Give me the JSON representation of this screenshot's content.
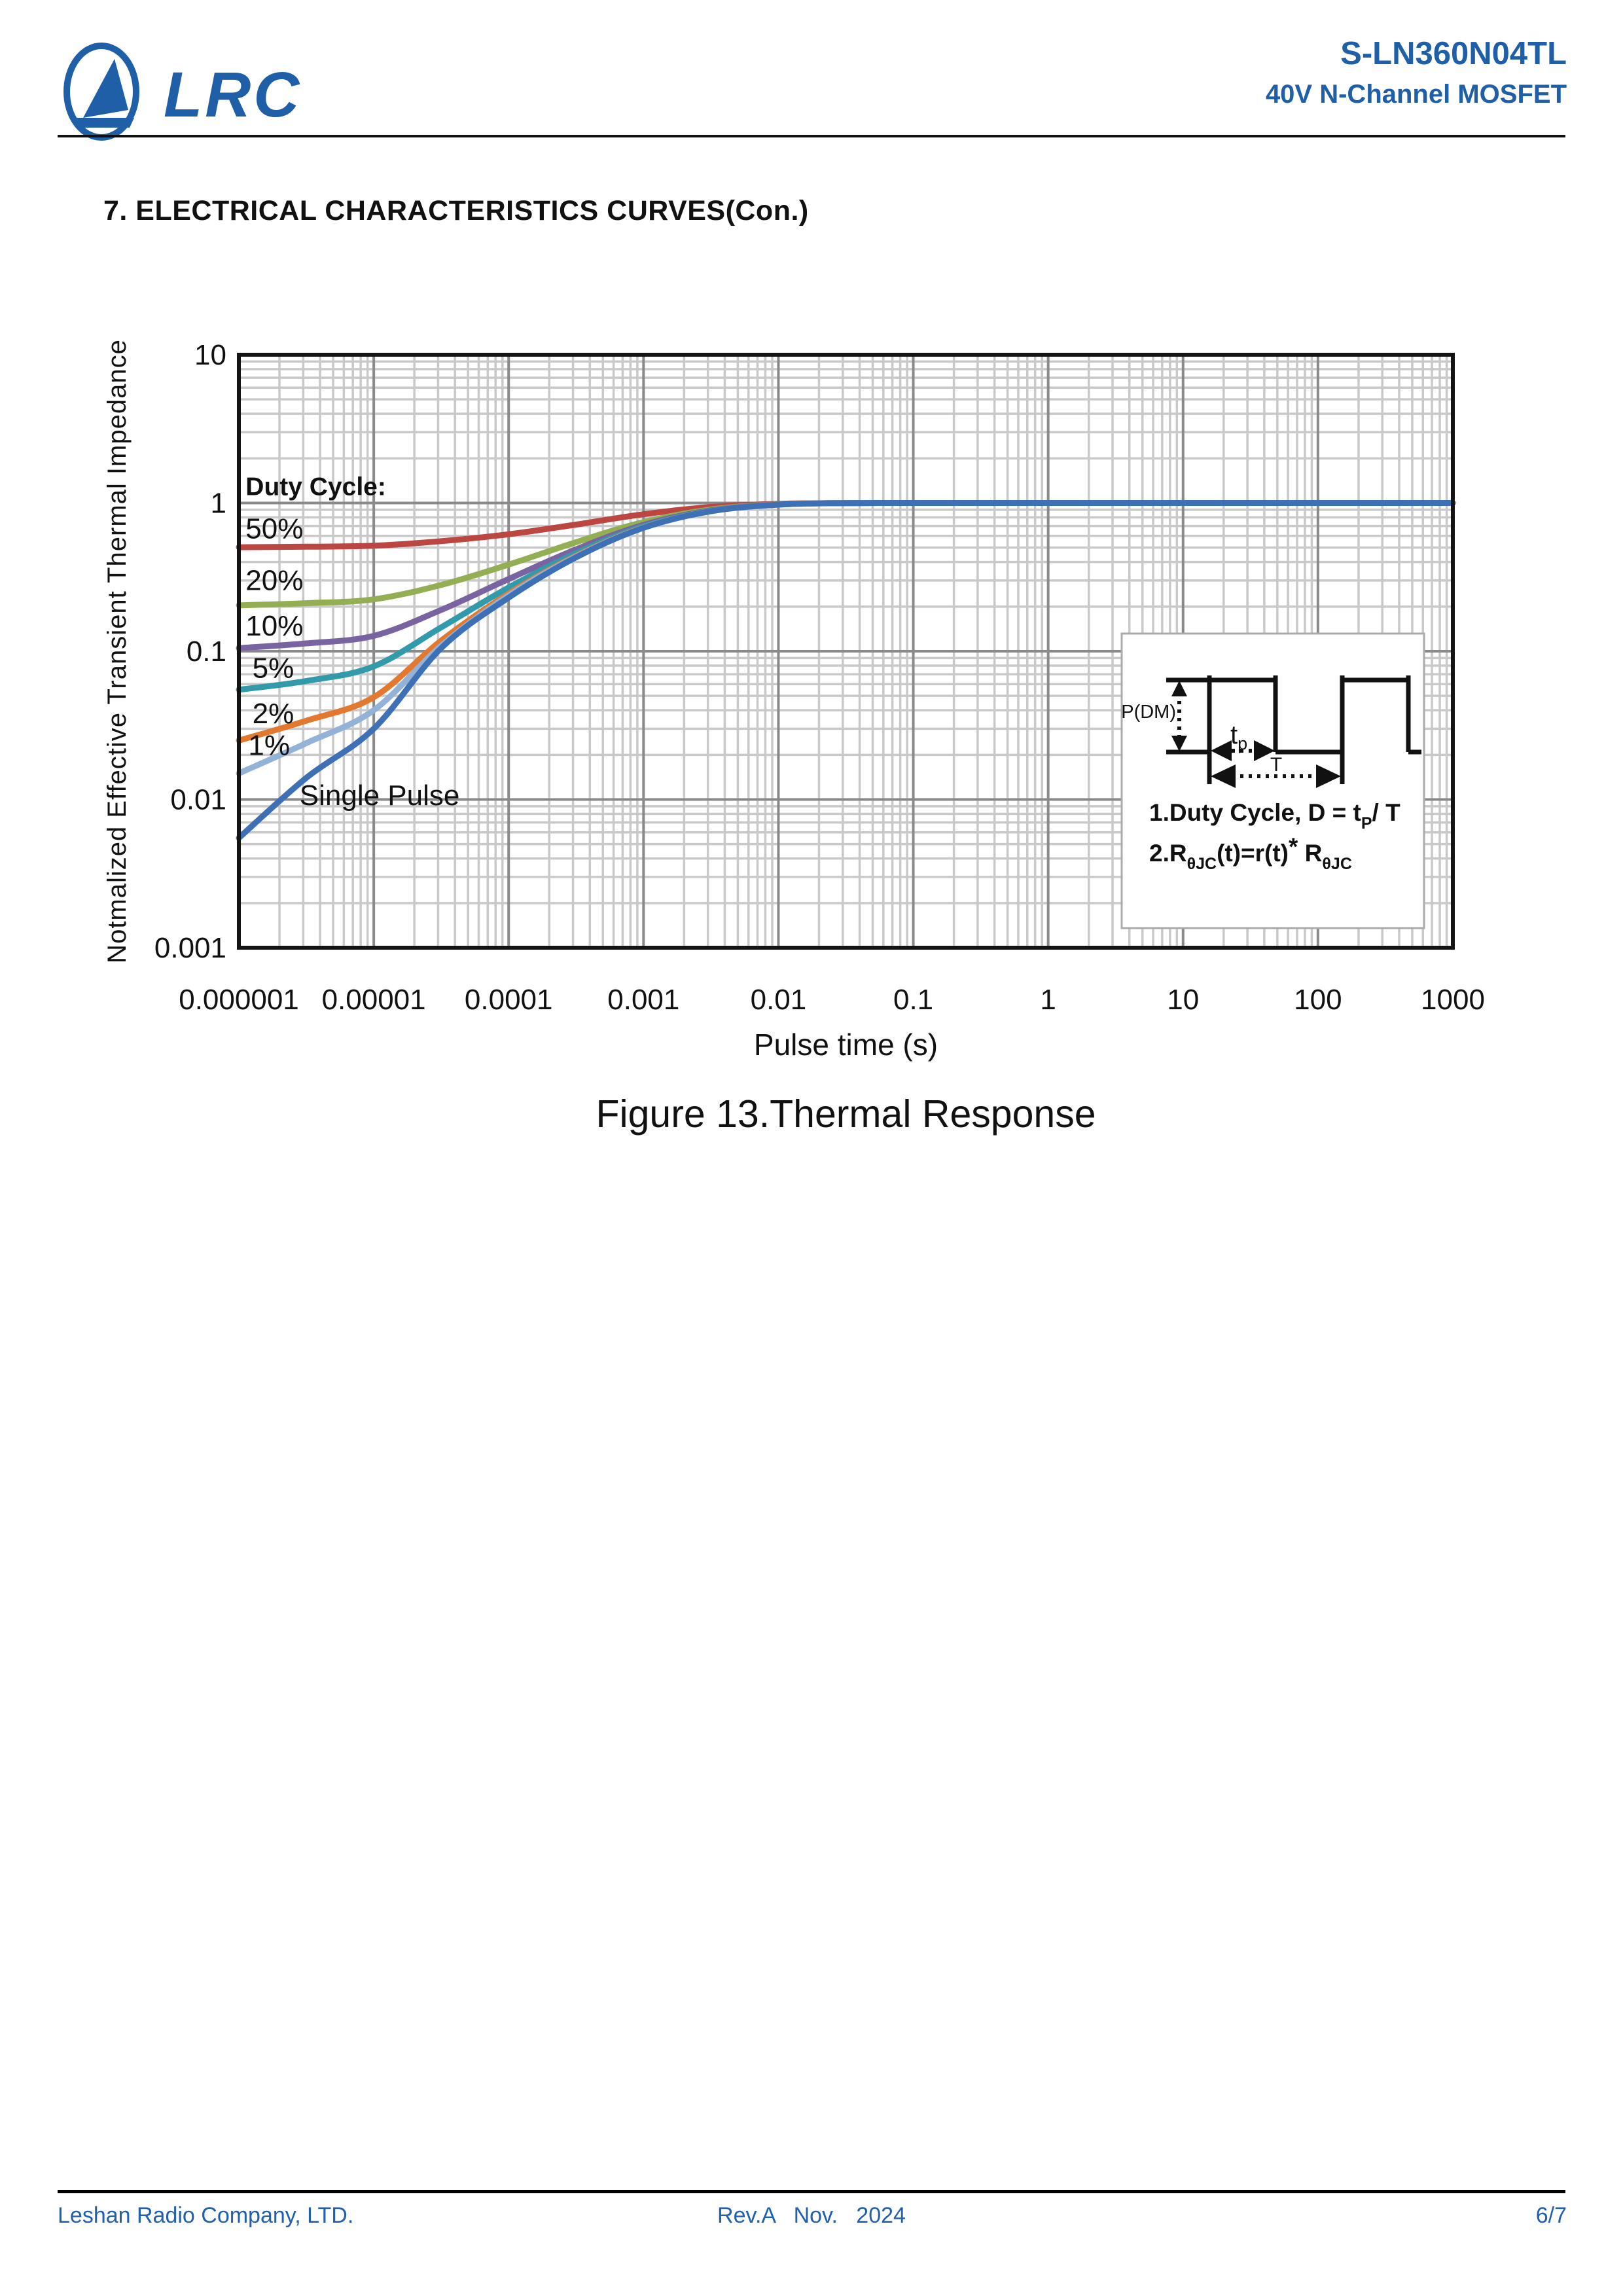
{
  "header": {
    "brand": "LRC",
    "part_number": "S-LN360N04TL",
    "subtitle": "40V N-Channel MOSFET"
  },
  "section_title": "7. ELECTRICAL CHARACTERISTICS CURVES(Con.)",
  "figure_caption": "Figure 13.Thermal Response",
  "footer": {
    "company": "Leshan Radio Company, LTD.",
    "revision": "Rev.A   Nov.   2024",
    "page": "6/7"
  },
  "chart_data": {
    "type": "line",
    "title": "Figure 13.Thermal Response",
    "xlabel": "Pulse time (s)",
    "ylabel": "Notmalized Effective Transient Thermal Impedance",
    "x_scale": "log",
    "y_scale": "log",
    "xlim": [
      1e-06,
      1000
    ],
    "ylim": [
      0.001,
      10
    ],
    "grid": "log major and minor gridlines on",
    "legend_title": "Duty Cycle:",
    "legend_title_pos": {
      "logt": -5.95,
      "r": 1.3
    },
    "x_ticks": [
      "0.000001",
      "0.00001",
      "0.0001",
      "0.001",
      "0.01",
      "0.1",
      "1",
      "10",
      "100",
      "1000"
    ],
    "y_ticks": [
      "10",
      "1",
      "0.1",
      "0.01",
      "0.001"
    ],
    "x_log10": [
      -6,
      -5.5,
      -5,
      -4.5,
      -4,
      -3.5,
      -3,
      -2.5,
      -2,
      -1.5,
      -1,
      0,
      1,
      2,
      3
    ],
    "series": [
      {
        "name": "50%",
        "duty": 0.5,
        "color": "#bb4642",
        "values": [
          0.503,
          0.507,
          0.515,
          0.553,
          0.615,
          0.715,
          0.84,
          0.94,
          0.988,
          0.999,
          1,
          1,
          1,
          1,
          1
        ]
      },
      {
        "name": "20%",
        "duty": 0.2,
        "color": "#94ae53",
        "values": [
          0.204,
          0.211,
          0.224,
          0.28,
          0.384,
          0.544,
          0.744,
          0.904,
          0.98,
          0.998,
          1,
          1,
          1,
          1,
          1
        ]
      },
      {
        "name": "10%",
        "duty": 0.1,
        "color": "#7a63a1",
        "values": [
          0.105,
          0.113,
          0.127,
          0.19,
          0.307,
          0.487,
          0.712,
          0.892,
          0.978,
          0.998,
          1,
          1,
          1,
          1,
          1
        ]
      },
      {
        "name": "5%",
        "duty": 0.05,
        "color": "#319bac",
        "values": [
          0.055,
          0.063,
          0.079,
          0.145,
          0.269,
          0.459,
          0.696,
          0.886,
          0.976,
          0.998,
          1,
          1,
          1,
          1,
          1
        ]
      },
      {
        "name": "2%",
        "duty": 0.02,
        "color": "#e3792e",
        "values": [
          0.025,
          0.034,
          0.049,
          0.118,
          0.245,
          0.441,
          0.686,
          0.882,
          0.976,
          0.998,
          1,
          1,
          1,
          1,
          1
        ]
      },
      {
        "name": "1%",
        "duty": 0.01,
        "color": "#93b2d8",
        "values": [
          0.015,
          0.024,
          0.04,
          0.109,
          0.238,
          0.436,
          0.683,
          0.881,
          0.975,
          0.998,
          1,
          1,
          1,
          1,
          1
        ]
      },
      {
        "name": "Single Pulse",
        "duty": 0,
        "color": "#3e70b5",
        "values": [
          0.0055,
          0.014,
          0.03,
          0.105,
          0.23,
          0.43,
          0.68,
          0.88,
          0.975,
          0.998,
          1,
          1,
          1,
          1,
          1
        ]
      }
    ],
    "curve_labels": [
      {
        "text": "50%",
        "logt": -5.95,
        "r": 0.68
      },
      {
        "text": "20%",
        "logt": -5.95,
        "r": 0.305
      },
      {
        "text": "10%",
        "logt": -5.95,
        "r": 0.15
      },
      {
        "text": "5%",
        "logt": -5.9,
        "r": 0.078
      },
      {
        "text": "2%",
        "logt": -5.9,
        "r": 0.0385
      },
      {
        "text": "1%",
        "logt": -5.93,
        "r": 0.0235
      },
      {
        "text": "Single Pulse",
        "logt": -5.55,
        "r": 0.0108
      }
    ],
    "inset": {
      "amplitude_label": "P(DM)",
      "pulse_width_label": {
        "base": "t",
        "sub": "p"
      },
      "period_label": "T",
      "notes": [
        [
          {
            "t": "1.Duty Cycle, D = t"
          },
          {
            "t": "P",
            "sub": true
          },
          {
            "t": "/ T"
          }
        ],
        [
          {
            "t": "2.R"
          },
          {
            "t": "θJC",
            "sub": true
          },
          {
            "t": "(t)=r(t)"
          },
          {
            "t": "*",
            "sup": true
          },
          {
            "t": " R"
          },
          {
            "t": "θJC",
            "sub": true
          }
        ]
      ]
    }
  }
}
